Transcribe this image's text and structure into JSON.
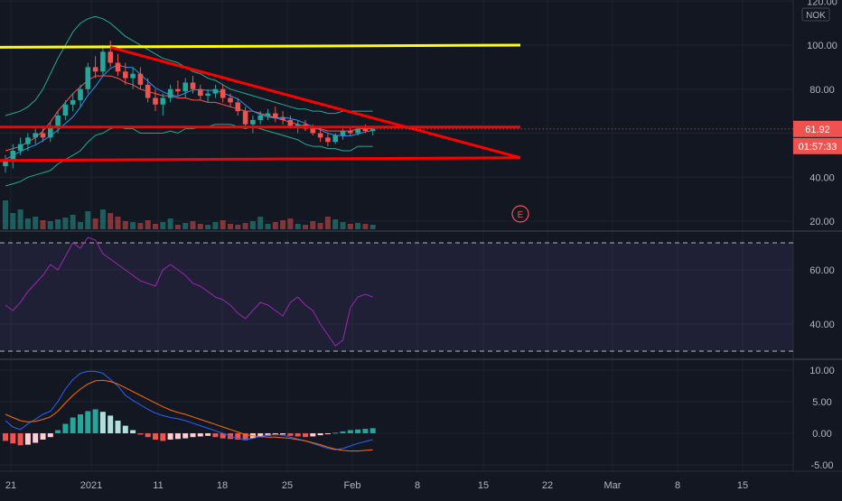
{
  "chart_data": {
    "type": "candlestick",
    "currency": "NOK",
    "x_axis_ticks": [
      "21",
      "2021",
      "11",
      "18",
      "25",
      "Feb",
      "8",
      "15",
      "22",
      "Mar",
      "8",
      "15"
    ],
    "price_axis": {
      "ticks": [
        "120.00",
        "100.00",
        "80.00",
        "60.00",
        "40.00",
        "20.00"
      ],
      "ylim": [
        20,
        120
      ]
    },
    "last_price_label": "61.92",
    "countdown_label": "01:57:33",
    "earnings_marker": "E",
    "candles": [
      [
        45,
        50,
        42,
        48
      ],
      [
        48,
        55,
        44,
        52
      ],
      [
        52,
        58,
        50,
        55
      ],
      [
        55,
        60,
        52,
        58
      ],
      [
        58,
        62,
        55,
        60
      ],
      [
        60,
        63,
        56,
        58
      ],
      [
        58,
        65,
        56,
        63
      ],
      [
        63,
        70,
        60,
        68
      ],
      [
        68,
        75,
        66,
        73
      ],
      [
        73,
        78,
        70,
        75
      ],
      [
        75,
        82,
        72,
        80
      ],
      [
        80,
        92,
        78,
        90
      ],
      [
        90,
        95,
        85,
        88
      ],
      [
        88,
        100,
        86,
        97
      ],
      [
        97,
        102,
        90,
        92
      ],
      [
        92,
        96,
        86,
        88
      ],
      [
        88,
        92,
        82,
        85
      ],
      [
        85,
        90,
        80,
        87
      ],
      [
        87,
        90,
        80,
        82
      ],
      [
        82,
        85,
        74,
        76
      ],
      [
        76,
        80,
        70,
        73
      ],
      [
        73,
        78,
        68,
        76
      ],
      [
        76,
        82,
        74,
        80
      ],
      [
        80,
        84,
        77,
        79
      ],
      [
        79,
        85,
        76,
        83
      ],
      [
        83,
        86,
        78,
        80
      ],
      [
        80,
        82,
        75,
        77
      ],
      [
        77,
        80,
        74,
        78
      ],
      [
        78,
        82,
        76,
        80
      ],
      [
        80,
        82,
        74,
        76
      ],
      [
        76,
        78,
        72,
        74
      ],
      [
        74,
        76,
        68,
        70
      ],
      [
        70,
        72,
        62,
        64
      ],
      [
        64,
        68,
        60,
        66
      ],
      [
        66,
        70,
        64,
        68
      ],
      [
        68,
        71,
        66,
        69
      ],
      [
        69,
        72,
        65,
        67
      ],
      [
        67,
        70,
        64,
        66
      ],
      [
        66,
        68,
        62,
        63
      ],
      [
        63,
        66,
        60,
        64
      ],
      [
        64,
        66,
        61,
        62
      ],
      [
        62,
        64,
        59,
        60
      ],
      [
        60,
        63,
        56,
        58
      ],
      [
        58,
        60,
        54,
        56
      ],
      [
        56,
        60,
        55,
        59
      ],
      [
        59,
        62,
        57,
        61
      ],
      [
        61,
        63,
        59,
        60
      ],
      [
        60,
        63,
        59,
        62
      ],
      [
        62,
        64,
        60,
        61
      ],
      [
        61,
        63,
        59,
        62
      ]
    ],
    "volume": [
      32,
      18,
      22,
      12,
      14,
      10,
      9,
      11,
      13,
      16,
      8,
      20,
      12,
      22,
      18,
      14,
      9,
      8,
      7,
      10,
      6,
      8,
      12,
      5,
      7,
      9,
      6,
      5,
      8,
      10,
      6,
      5,
      7,
      9,
      14,
      6,
      8,
      10,
      12,
      6,
      5,
      9,
      7,
      14,
      11,
      8,
      6,
      7,
      6,
      5
    ],
    "bollinger": {
      "upper": [
        68,
        69,
        70,
        72,
        75,
        80,
        87,
        94,
        100,
        106,
        110,
        112,
        113,
        112,
        110,
        107,
        104,
        102,
        100,
        98,
        96,
        94,
        93,
        92,
        90,
        88,
        87,
        85,
        84,
        82,
        80,
        79,
        78,
        77,
        76,
        75,
        74,
        73,
        72,
        71,
        71,
        70,
        70,
        69,
        69,
        70,
        70,
        70,
        70,
        70
      ],
      "middle": [
        52,
        53,
        54,
        56,
        58,
        61,
        65,
        70,
        74,
        78,
        81,
        84,
        86,
        86,
        86,
        85,
        83,
        82,
        80,
        79,
        78,
        77,
        77,
        76,
        76,
        75,
        75,
        74,
        74,
        73,
        72,
        71,
        70,
        70,
        69,
        68,
        67,
        66,
        65,
        64,
        63,
        62,
        62,
        61,
        61,
        61,
        61,
        62,
        62,
        62
      ],
      "lower": [
        36,
        37,
        38,
        40,
        41,
        42,
        43,
        46,
        48,
        50,
        52,
        56,
        59,
        60,
        62,
        63,
        62,
        62,
        60,
        60,
        60,
        60,
        61,
        60,
        62,
        62,
        63,
        63,
        64,
        64,
        64,
        63,
        62,
        63,
        62,
        61,
        60,
        59,
        58,
        57,
        55,
        54,
        54,
        53,
        53,
        52,
        52,
        54,
        54,
        54
      ]
    },
    "trendlines": {
      "resistance_yellow": 100,
      "support_upper": 64,
      "support_lower": 48,
      "descending_from": [
        14,
        99
      ],
      "descending_to_price": 48
    },
    "rsi": {
      "axis_ticks": [
        "60.00",
        "40.00"
      ],
      "upper_band": 70,
      "lower_band": 30,
      "values": [
        47,
        45,
        48,
        52,
        55,
        58,
        62,
        60,
        65,
        70,
        68,
        72,
        71,
        66,
        64,
        62,
        60,
        58,
        56,
        55,
        54,
        60,
        62,
        60,
        58,
        55,
        54,
        52,
        50,
        49,
        47,
        44,
        42,
        45,
        48,
        47,
        45,
        43,
        48,
        50,
        47,
        45,
        40,
        36,
        32,
        34,
        46,
        50,
        51,
        50
      ]
    },
    "macd": {
      "axis_ticks": [
        "10.00",
        "5.00",
        "0.00",
        "-5.00"
      ],
      "histogram": [
        -1.2,
        -1.6,
        -1.9,
        -1.8,
        -1.5,
        -1.0,
        -0.6,
        0.5,
        1.5,
        2.5,
        3.0,
        3.5,
        3.8,
        3.4,
        2.8,
        2.0,
        1.2,
        0.5,
        -0.2,
        -0.6,
        -1.0,
        -1.2,
        -1.0,
        -0.9,
        -0.8,
        -0.6,
        -0.5,
        -0.4,
        -0.6,
        -0.8,
        -0.9,
        -1.0,
        -1.1,
        -0.8,
        -0.6,
        -0.4,
        -0.3,
        -0.2,
        -0.4,
        -0.5,
        -0.6,
        -0.5,
        -0.3,
        -0.1,
        0.1,
        0.3,
        0.5,
        0.6,
        0.7,
        0.8
      ],
      "macd_line": [
        2.0,
        1.0,
        0.6,
        1.5,
        2.2,
        3.0,
        3.5,
        5.0,
        7.0,
        8.5,
        9.5,
        9.8,
        9.8,
        9.5,
        8.5,
        7.5,
        6.0,
        5.2,
        4.5,
        3.8,
        3.2,
        2.8,
        2.5,
        2.3,
        2.0,
        1.6,
        1.2,
        0.8,
        0.4,
        0.0,
        -0.5,
        -0.8,
        -1.0,
        -0.8,
        -0.5,
        -0.3,
        -0.2,
        -0.3,
        -0.6,
        -0.9,
        -1.2,
        -1.6,
        -2.0,
        -2.4,
        -2.6,
        -2.4,
        -2.0,
        -1.6,
        -1.3,
        -1.0
      ],
      "signal_line": [
        3.0,
        2.5,
        2.0,
        1.8,
        1.9,
        2.2,
        2.6,
        3.5,
        4.8,
        6.0,
        7.0,
        7.8,
        8.3,
        8.4,
        8.2,
        7.8,
        7.2,
        6.6,
        6.0,
        5.4,
        4.8,
        4.2,
        3.7,
        3.3,
        3.0,
        2.6,
        2.2,
        1.8,
        1.4,
        1.0,
        0.6,
        0.2,
        -0.2,
        -0.4,
        -0.5,
        -0.6,
        -0.6,
        -0.7,
        -0.8,
        -1.0,
        -1.2,
        -1.5,
        -1.8,
        -2.2,
        -2.5,
        -2.7,
        -2.8,
        -2.8,
        -2.7,
        -2.6
      ]
    },
    "colors": {
      "up": "#26a69a",
      "down": "#ef5350",
      "yellow_line": "#ffff00",
      "red_line": "#ff0000",
      "bb_upper_lower": "#22ab94",
      "bb_middle": "#ff5252",
      "ma": "#2196f3",
      "rsi": "#9c27b0",
      "macd": "#2962ff",
      "signal": "#ff6d00"
    }
  }
}
